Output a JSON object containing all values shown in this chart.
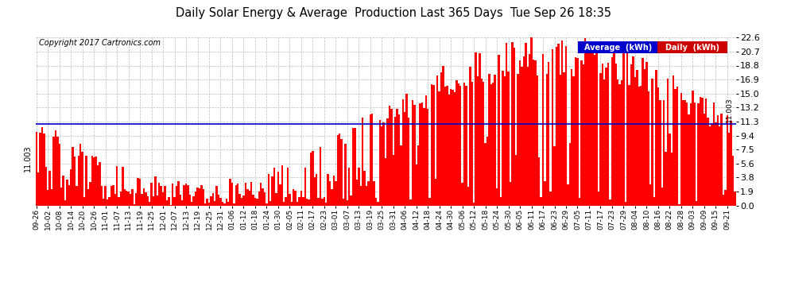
{
  "title": "Daily Solar Energy & Average  Production Last 365 Days  Tue Sep 26 18:35",
  "copyright": "Copyright 2017 Cartronics.com",
  "bar_color": "#ff0000",
  "avg_line_color": "#0000cd",
  "avg_value": 11.003,
  "ylim": [
    0.0,
    22.6
  ],
  "yticks": [
    0.0,
    1.9,
    3.8,
    5.6,
    7.5,
    9.4,
    11.3,
    13.2,
    15.0,
    16.9,
    18.8,
    20.7,
    22.6
  ],
  "background_color": "#ffffff",
  "grid_color": "#aaaaaa",
  "legend_avg_bg": "#0000cc",
  "legend_daily_bg": "#cc0000",
  "xtick_labels": [
    "09-26",
    "10-02",
    "10-08",
    "10-14",
    "10-20",
    "10-26",
    "11-01",
    "11-07",
    "11-13",
    "11-19",
    "11-25",
    "12-01",
    "12-07",
    "12-13",
    "12-19",
    "12-25",
    "12-31",
    "01-06",
    "01-12",
    "01-18",
    "01-24",
    "01-30",
    "02-05",
    "02-11",
    "02-17",
    "02-23",
    "03-01",
    "03-07",
    "03-13",
    "03-19",
    "03-25",
    "03-31",
    "04-06",
    "04-12",
    "04-18",
    "04-24",
    "04-30",
    "05-06",
    "05-12",
    "05-18",
    "05-24",
    "05-30",
    "06-05",
    "06-11",
    "06-17",
    "06-23",
    "06-29",
    "07-05",
    "07-11",
    "07-17",
    "07-23",
    "07-29",
    "08-04",
    "08-10",
    "08-16",
    "08-22",
    "08-28",
    "09-03",
    "09-09",
    "09-15",
    "09-21"
  ],
  "num_bars": 365
}
